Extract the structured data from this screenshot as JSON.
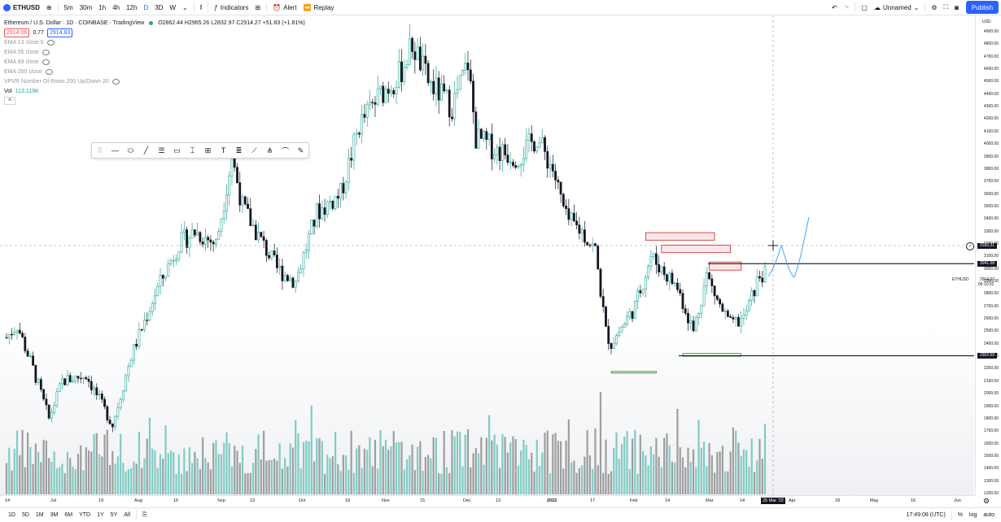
{
  "toolbar": {
    "symbol": "ETHUSD",
    "intervals": [
      "5m",
      "30m",
      "1h",
      "4h",
      "12h",
      "D",
      "3D",
      "W"
    ],
    "active_interval": "D",
    "indicators_label": "Indicators",
    "alert_label": "Alert",
    "replay_label": "Replay",
    "layout_name": "Unnamed",
    "publish_label": "Publish"
  },
  "legend": {
    "title": "Ethereum / U.S. Dollar · 1D · COINBASE · TradingView",
    "ohlc": "O2862.44 H2965.26 L2832.97 C2914.27 +51.83 (+1.81%)",
    "bid": "2914.06",
    "spread": "0.77",
    "ask": "2914.83",
    "indicators": [
      "EMA 13 close 0",
      "EMA 55 close",
      "EMA 89 close",
      "EMA 200 close",
      "VPVR Number Of Rows 200 Up/Down 20"
    ],
    "vol_label": "Vol",
    "vol_value": "113.119K"
  },
  "price_axis": {
    "currency": "USD",
    "labels": [
      "4900.00",
      "4800.00",
      "4700.00",
      "4600.00",
      "4500.00",
      "4400.00",
      "4300.00",
      "4200.00",
      "4100.00",
      "4000.00",
      "3900.00",
      "3800.00",
      "3700.00",
      "3600.00",
      "3500.00",
      "3400.00",
      "3300.00",
      "3200.00",
      "3100.00",
      "3000.00",
      "2900.00",
      "2800.00",
      "2700.00",
      "2600.00",
      "2500.00",
      "2400.00",
      "2300.00",
      "2200.00",
      "2100.00",
      "2000.00",
      "1900.00",
      "1800.00",
      "1700.00",
      "1600.00",
      "1500.00",
      "1400.00",
      "1300.00",
      "1200.00"
    ],
    "crosshair_price": "3183.31",
    "level_high": "3041.58",
    "level_low": "2303.59",
    "symbol_tag": "ETHUSD",
    "last_price": "2914.27",
    "countdown": "06:10:52"
  },
  "time_axis": {
    "labels": [
      "14",
      "Jul",
      "19",
      "Aug",
      "16",
      "Sep",
      "13",
      "Oct",
      "18",
      "Nov",
      "15",
      "Dec",
      "13",
      "2022",
      "17",
      "Feb",
      "14",
      "Mar",
      "14",
      "Apr",
      "18",
      "May",
      "16",
      "Jun"
    ],
    "crosshair_date": "25 Mar '22"
  },
  "bottom_bar": {
    "ranges": [
      "1D",
      "5D",
      "1M",
      "3M",
      "6M",
      "YTD",
      "1Y",
      "5Y",
      "All"
    ],
    "clock": "17:49:08 (UTC)",
    "percent_label": "%",
    "log_label": "log",
    "auto_label": "auto"
  },
  "colors": {
    "up": "#26a69a",
    "down": "#131722",
    "accent": "#2962ff",
    "zone_fill": "#f8d7da",
    "zone_stroke": "#e57373"
  },
  "chart_data": {
    "type": "candlestick",
    "symbol": "ETHUSD",
    "interval": "1D",
    "x_range": [
      "Jun 2021",
      "Jun 2022"
    ],
    "ylim": [
      1150,
      4950
    ],
    "price_path": [
      [
        "2021-06-10",
        2450
      ],
      [
        "2021-06-14",
        2550
      ],
      [
        "2021-06-20",
        2200
      ],
      [
        "2021-06-26",
        1800
      ],
      [
        "2021-07-01",
        2100
      ],
      [
        "2021-07-10",
        2150
      ],
      [
        "2021-07-20",
        1750
      ],
      [
        "2021-07-27",
        2300
      ],
      [
        "2021-08-05",
        2800
      ],
      [
        "2021-08-14",
        3200
      ],
      [
        "2021-08-20",
        3300
      ],
      [
        "2021-08-28",
        3200
      ],
      [
        "2021-09-03",
        3900
      ],
      [
        "2021-09-07",
        3500
      ],
      [
        "2021-09-12",
        3300
      ],
      [
        "2021-09-20",
        3000
      ],
      [
        "2021-09-27",
        2900
      ],
      [
        "2021-10-05",
        3450
      ],
      [
        "2021-10-14",
        3600
      ],
      [
        "2021-10-21",
        4150
      ],
      [
        "2021-10-29",
        4400
      ],
      [
        "2021-11-05",
        4550
      ],
      [
        "2021-11-10",
        4800
      ],
      [
        "2021-11-16",
        4500
      ],
      [
        "2021-11-25",
        4300
      ],
      [
        "2021-12-01",
        4650
      ],
      [
        "2021-12-04",
        4050
      ],
      [
        "2021-12-12",
        3950
      ],
      [
        "2021-12-20",
        3900
      ],
      [
        "2021-12-27",
        4050
      ],
      [
        "2022-01-02",
        3800
      ],
      [
        "2022-01-07",
        3400
      ],
      [
        "2022-01-13",
        3300
      ],
      [
        "2022-01-18",
        3150
      ],
      [
        "2022-01-22",
        2500
      ],
      [
        "2022-01-24",
        2400
      ],
      [
        "2022-02-02",
        2700
      ],
      [
        "2022-02-08",
        3100
      ],
      [
        "2022-02-12",
        3000
      ],
      [
        "2022-02-18",
        2850
      ],
      [
        "2022-02-24",
        2500
      ],
      [
        "2022-03-01",
        2950
      ],
      [
        "2022-03-06",
        2700
      ],
      [
        "2022-03-10",
        2550
      ],
      [
        "2022-03-15",
        2600
      ],
      [
        "2022-03-21",
        2950
      ]
    ],
    "volume_max": 2000,
    "annotations": [
      {
        "type": "zone",
        "from_date": "2022-02-06",
        "to_date": "2022-03-04",
        "price_low": 3230,
        "price_high": 3290
      },
      {
        "type": "zone",
        "from_date": "2022-02-12",
        "to_date": "2022-03-10",
        "price_low": 3130,
        "price_high": 3190
      },
      {
        "type": "zone",
        "from_date": "2022-03-02",
        "to_date": "2022-03-14",
        "price_low": 2990,
        "price_high": 3055
      },
      {
        "type": "zone",
        "from_date": "2022-02-20",
        "to_date": "2022-03-14",
        "price_low": 2300,
        "price_high": 2322
      },
      {
        "type": "zone",
        "from_date": "2022-01-24",
        "to_date": "2022-02-10",
        "price_low": 2165,
        "price_high": 2178
      },
      {
        "type": "hline",
        "price": 3041.58
      },
      {
        "type": "hline",
        "price": 2303.59
      }
    ]
  }
}
